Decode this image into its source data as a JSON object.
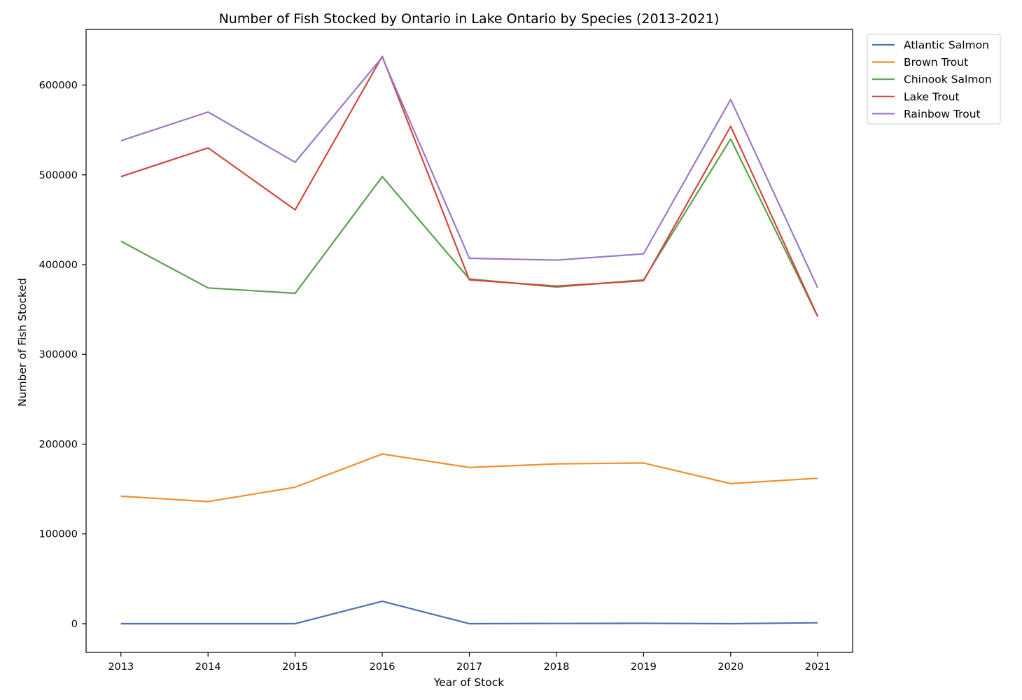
{
  "chart_data": {
    "type": "line",
    "title": "Number of Fish Stocked by Ontario in Lake Ontario by Species (2013-2021)",
    "xlabel": "Year of Stock",
    "ylabel": "Number of Fish Stocked",
    "x": [
      "2013",
      "2014",
      "2015",
      "2016",
      "2017",
      "2018",
      "2019",
      "2020",
      "2021"
    ],
    "xlim": [
      2012.6,
      2021.4
    ],
    "ylim": [
      -32000,
      662000
    ],
    "yticks": [
      0,
      100000,
      200000,
      300000,
      400000,
      500000,
      600000
    ],
    "ytick_labels": [
      "0",
      "100000",
      "200000",
      "300000",
      "400000",
      "500000",
      "600000"
    ],
    "grid": false,
    "legend_position": "outside upper right",
    "series": [
      {
        "name": "Atlantic Salmon",
        "color": "#4c72b0",
        "values": [
          0,
          0,
          0,
          25000,
          0,
          200,
          400,
          0,
          1000
        ]
      },
      {
        "name": "Brown Trout",
        "color": "#f28e2b",
        "values": [
          142000,
          136000,
          152000,
          189000,
          174000,
          178000,
          179000,
          156000,
          162000
        ]
      },
      {
        "name": "Chinook Salmon",
        "color": "#59a14f",
        "values": [
          426000,
          374000,
          368000,
          498000,
          384000,
          375000,
          383000,
          540000,
          342000
        ]
      },
      {
        "name": "Lake Trout",
        "color": "#d1483f",
        "values": [
          498000,
          530000,
          461000,
          632000,
          383000,
          376000,
          382000,
          554000,
          342000
        ]
      },
      {
        "name": "Rainbow Trout",
        "color": "#9c78c8",
        "values": [
          538000,
          570000,
          514000,
          631000,
          407000,
          405000,
          412000,
          584000,
          374000
        ]
      }
    ]
  }
}
